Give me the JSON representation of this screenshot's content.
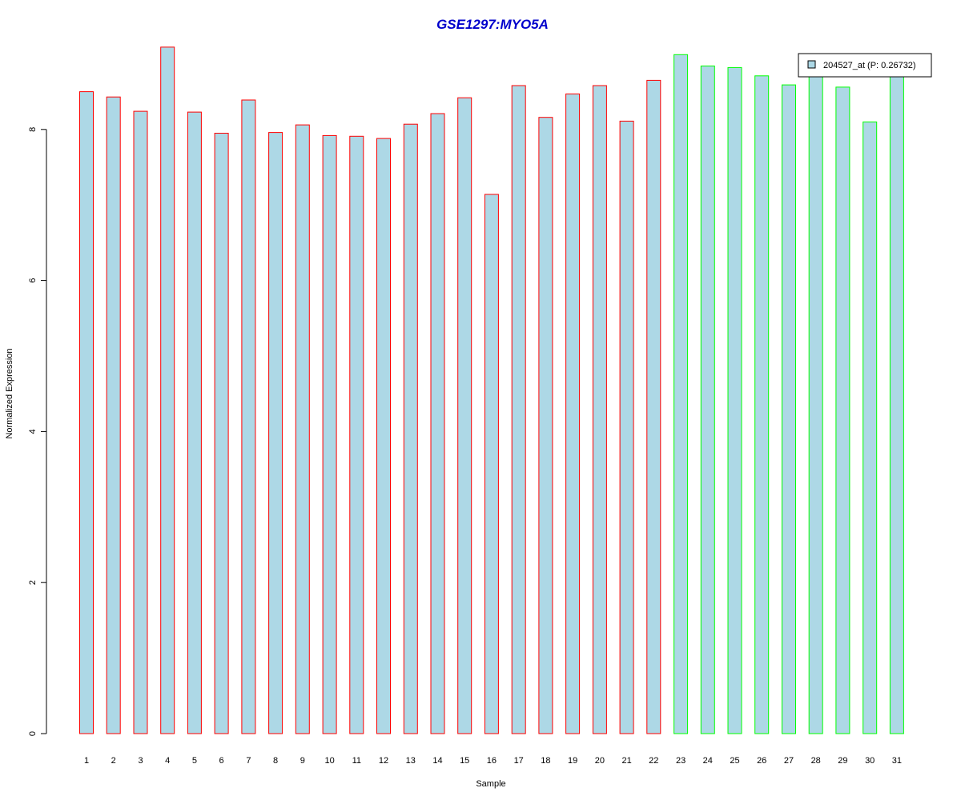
{
  "chart_data": {
    "type": "bar",
    "title": "GSE1297:MYO5A",
    "xlabel": "Sample",
    "ylabel": "Normalized Expression",
    "ylim": [
      0,
      9.2
    ],
    "yticks": [
      0,
      2,
      4,
      6,
      8
    ],
    "categories": [
      "1",
      "2",
      "3",
      "4",
      "5",
      "6",
      "7",
      "8",
      "9",
      "10",
      "11",
      "12",
      "13",
      "14",
      "15",
      "16",
      "17",
      "18",
      "19",
      "20",
      "21",
      "22",
      "23",
      "24",
      "25",
      "26",
      "27",
      "28",
      "29",
      "30",
      "31"
    ],
    "series": [
      {
        "name": "204527_at (P: 0.26732)",
        "values": [
          8.5,
          8.43,
          8.24,
          9.09,
          8.23,
          7.95,
          8.39,
          7.96,
          8.06,
          7.92,
          7.91,
          7.88,
          8.07,
          8.21,
          8.42,
          7.14,
          8.58,
          8.16,
          8.47,
          8.58,
          8.11,
          8.65,
          8.99,
          8.84,
          8.82,
          8.71,
          8.59,
          8.73,
          8.56,
          8.1,
          8.74
        ]
      }
    ],
    "groups": [
      "red",
      "red",
      "red",
      "red",
      "red",
      "red",
      "red",
      "red",
      "red",
      "red",
      "red",
      "red",
      "red",
      "red",
      "red",
      "red",
      "red",
      "red",
      "red",
      "red",
      "red",
      "red",
      "green",
      "green",
      "green",
      "green",
      "green",
      "green",
      "green",
      "green",
      "green"
    ],
    "legend_position": "top-right",
    "grid": false
  },
  "colors": {
    "bar_fill": "#add8e6",
    "red_border": "#ff0000",
    "green_border": "#00ff00",
    "title": "#0000cc",
    "axis": "#000000"
  }
}
